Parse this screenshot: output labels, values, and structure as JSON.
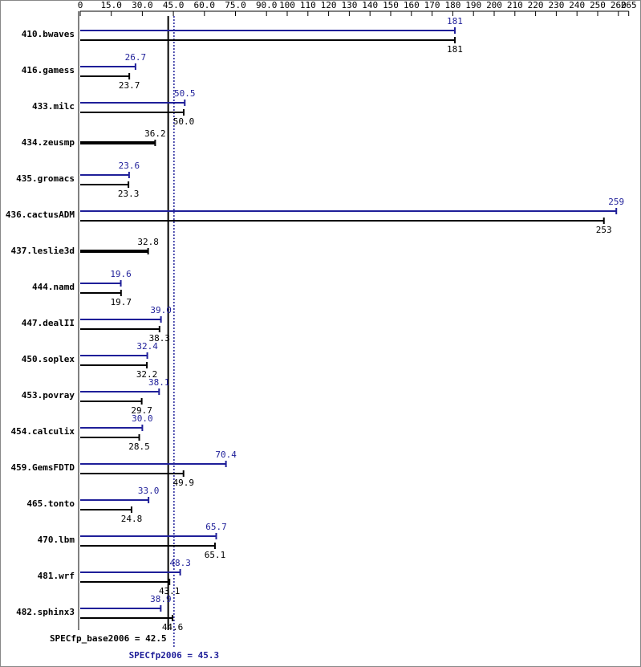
{
  "chart_data": {
    "type": "bar",
    "orientation": "horizontal",
    "categories": [
      "410.bwaves",
      "416.gamess",
      "433.milc",
      "434.zeusmp",
      "435.gromacs",
      "436.cactusADM",
      "437.leslie3d",
      "444.namd",
      "447.dealII",
      "450.soplex",
      "453.povray",
      "454.calculix",
      "459.GemsFDTD",
      "465.tonto",
      "470.lbm",
      "481.wrf",
      "482.sphinx3"
    ],
    "series": [
      {
        "color": "#1f1f99",
        "values": [
          181,
          26.7,
          50.5,
          null,
          23.6,
          259,
          null,
          19.6,
          39.0,
          32.4,
          38.1,
          30.0,
          70.4,
          33.0,
          65.7,
          48.3,
          38.9
        ],
        "value_labels": [
          "181",
          "26.7",
          "50.5",
          null,
          "23.6",
          "259",
          null,
          "19.6",
          "39.0",
          "32.4",
          "38.1",
          "30.0",
          "70.4",
          "33.0",
          "65.7",
          "48.3",
          "38.9"
        ]
      },
      {
        "color": "#000000",
        "values": [
          181,
          23.7,
          50.0,
          36.2,
          23.3,
          253,
          32.8,
          19.7,
          38.3,
          32.2,
          29.7,
          28.5,
          49.9,
          24.8,
          65.1,
          43.1,
          44.6
        ],
        "value_labels": [
          "181",
          "23.7",
          "50.0",
          "36.2",
          "23.3",
          "253",
          "32.8",
          "19.7",
          "38.3",
          "32.2",
          "29.7",
          "28.5",
          "49.9",
          "24.8",
          "65.1",
          "43.1",
          "44.6"
        ]
      }
    ],
    "xlim": [
      0,
      265
    ],
    "xticks": [
      0,
      {
        "value": 15,
        "label": "15.0"
      },
      {
        "value": 30,
        "label": "30.0"
      },
      {
        "value": 45,
        "label": "45.0"
      },
      {
        "value": 60,
        "label": "60.0"
      },
      {
        "value": 75,
        "label": "75.0"
      },
      {
        "value": 90,
        "label": "90.0"
      },
      100,
      110,
      120,
      130,
      140,
      150,
      160,
      170,
      180,
      190,
      200,
      210,
      220,
      230,
      240,
      250,
      260,
      265
    ],
    "reference_lines": [
      {
        "label": "SPECfp_base2006 = 42.5",
        "value": 42.5,
        "color": "#000000",
        "style": "solid"
      },
      {
        "label": "SPECfp2006 = 45.3",
        "value": 45.3,
        "color": "#1f1f99",
        "style": "dotted"
      }
    ]
  }
}
